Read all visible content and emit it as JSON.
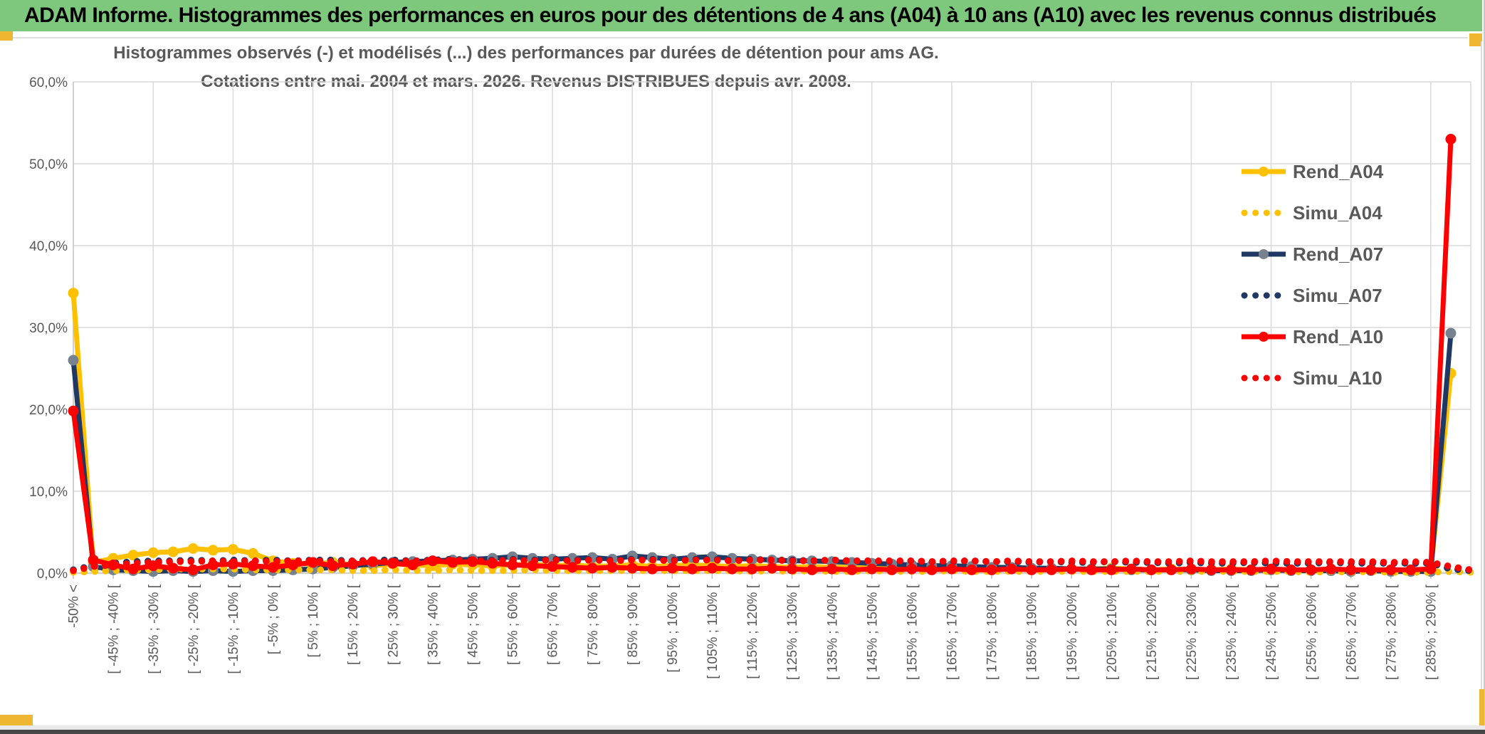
{
  "header": {
    "title": "ADAM Informe. Histogrammes des performances en euros pour des détentions de 4 ans (A04) à 10 ans (A10) avec les revenus connus distribués"
  },
  "colors": {
    "header_green": "#7ec87e",
    "accent_gold": "#efb731",
    "series_gold": "#FFC000",
    "series_navy": "#1F3864",
    "series_red": "#FF0000",
    "marker_grey": "#76828F",
    "grid_grey": "#D9D9D9",
    "axis_grey": "#BFBFBF",
    "text_grey": "#595959"
  },
  "chart_data": {
    "type": "line",
    "title_line1": "Histogrammes observés (-) et modélisés (...) des performances par durées de détention pour ams AG.",
    "title_line2": "Cotations entre mai. 2004 et mars. 2026. Revenus DISTRIBUES depuis avr. 2008.",
    "grid": true,
    "legend_position": "right-inside",
    "ylim": [
      0,
      60
    ],
    "ytick_labels_top_to_bottom": [
      "60,0%",
      "50,0%",
      "40,0%",
      "30,0%",
      "20,0%",
      "10,0%",
      "0,0%"
    ],
    "n_bins": 71,
    "xtick_every": 2,
    "xtick_labels": [
      "-50% <",
      "[ -45% ; -40% [",
      "[ -35% ; -30% [",
      "[ -25% ; -20% [",
      "[ -15% ; -10% [",
      "[ -5% ; 0% [",
      "[ 5% ; 10% [",
      "[ 15% ; 20% [",
      "[ 25% ; 30% [",
      "[ 35% ; 40% [",
      "[ 45% ; 50% [",
      "[ 55% ; 60% [",
      "[ 65% ; 70% [",
      "[ 75% ; 80% [",
      "[ 85% ; 90% [",
      "[ 95% ; 100% [",
      "[ 105% ; 110% [",
      "[ 115% ; 120% [",
      "[ 125% ; 130% [",
      "[ 135% ; 140% [",
      "[ 145% ; 150% [",
      "[ 155% ; 160% [",
      "[ 165% ; 170% [",
      "[ 175% ; 180% [",
      "[ 185% ; 190% [",
      "[ 195% ; 200% [",
      "[ 205% ; 210% [",
      "[ 215% ; 220% [",
      "[ 225% ; 230% [",
      "[ 235% ; 240% [",
      "[ 245% ; 250% [",
      "[ 255% ; 260% [",
      "[ 265% ; 270% [",
      "[ 275% ; 280% [",
      "[ 285% ; 290% ["
    ],
    "series": [
      {
        "name": "Rend_A04",
        "style": "solid",
        "color": "#FFC000",
        "marker": "#FFC000",
        "values": [
          34.2,
          1.3,
          1.8,
          2.2,
          2.5,
          2.6,
          3.0,
          2.8,
          2.9,
          2.4,
          1.5,
          1.2,
          1.1,
          1.3,
          1.0,
          0.9,
          1.1,
          1.0,
          0.9,
          1.1,
          1.0,
          0.9,
          1.0,
          1.1,
          0.9,
          1.0,
          0.8,
          0.9,
          1.0,
          0.8,
          0.9,
          1.0,
          0.9,
          0.8,
          0.9,
          0.8,
          0.7,
          0.8,
          0.7,
          0.8,
          0.7,
          0.6,
          0.7,
          0.6,
          0.7,
          0.6,
          0.5,
          0.6,
          0.5,
          0.6,
          0.5,
          0.5,
          0.6,
          0.5,
          0.4,
          0.5,
          0.4,
          0.4,
          0.5,
          0.4,
          0.4,
          0.3,
          0.4,
          0.3,
          0.4,
          0.3,
          0.3,
          0.4,
          0.3,
          24.4,
          null
        ]
      },
      {
        "name": "Simu_A04",
        "style": "dotted",
        "color": "#FFC000",
        "values": [
          0.1,
          0.2,
          0.3,
          0.4,
          0.4,
          0.5,
          0.5,
          0.5,
          0.5,
          0.4,
          0.4,
          0.4,
          0.4,
          0.4,
          0.3,
          0.3,
          0.4,
          0.3,
          0.3,
          0.4,
          0.3,
          0.3,
          0.3,
          0.4,
          0.3,
          0.3,
          0.3,
          0.3,
          0.3,
          0.3,
          0.3,
          0.3,
          0.3,
          0.3,
          0.2,
          0.3,
          0.2,
          0.3,
          0.2,
          0.2,
          0.3,
          0.2,
          0.2,
          0.2,
          0.3,
          0.2,
          0.2,
          0.2,
          0.2,
          0.2,
          0.2,
          0.2,
          0.2,
          0.2,
          0.2,
          0.2,
          0.2,
          0.2,
          0.2,
          0.2,
          0.2,
          0.2,
          0.1,
          0.2,
          0.1,
          0.2,
          0.1,
          0.1,
          0.1,
          0.2,
          0.1
        ]
      },
      {
        "name": "Rend_A07",
        "style": "solid",
        "color": "#1F3864",
        "marker": "#76828F",
        "values": [
          26.0,
          0.8,
          0.4,
          0.3,
          0.2,
          0.3,
          0.2,
          0.3,
          0.2,
          0.3,
          0.3,
          0.4,
          0.5,
          0.7,
          0.9,
          1.1,
          1.3,
          1.4,
          1.5,
          1.6,
          1.7,
          1.8,
          2.0,
          1.8,
          1.7,
          1.8,
          1.9,
          1.7,
          2.1,
          1.9,
          1.7,
          1.9,
          2.0,
          1.8,
          1.7,
          1.6,
          1.5,
          1.5,
          1.4,
          1.3,
          1.2,
          1.1,
          1.0,
          0.9,
          0.9,
          0.8,
          0.7,
          0.7,
          0.6,
          0.6,
          0.5,
          0.5,
          0.5,
          0.4,
          0.4,
          0.4,
          0.4,
          0.3,
          0.3,
          0.3,
          0.4,
          0.3,
          0.3,
          0.3,
          0.2,
          0.3,
          0.2,
          0.2,
          0.2,
          29.3,
          null
        ]
      },
      {
        "name": "Simu_A07",
        "style": "dotted",
        "color": "#1F3864",
        "values": [
          0.4,
          0.9,
          1.2,
          1.4,
          1.5,
          1.5,
          1.6,
          1.5,
          1.6,
          1.5,
          1.6,
          1.5,
          1.6,
          1.6,
          1.5,
          1.6,
          1.6,
          1.5,
          1.6,
          1.7,
          1.6,
          1.6,
          1.7,
          1.6,
          1.7,
          1.6,
          1.7,
          1.6,
          1.7,
          1.7,
          1.6,
          1.7,
          1.7,
          1.6,
          1.7,
          1.6,
          1.6,
          1.5,
          1.6,
          1.5,
          1.5,
          1.4,
          1.5,
          1.4,
          1.4,
          1.5,
          1.4,
          1.4,
          1.3,
          1.4,
          1.3,
          1.3,
          1.4,
          1.3,
          1.3,
          1.2,
          1.3,
          1.2,
          1.2,
          1.3,
          1.2,
          1.2,
          1.2,
          1.3,
          1.2,
          1.2,
          1.2,
          1.2,
          1.2,
          0.5,
          0.3
        ]
      },
      {
        "name": "Rend_A10",
        "style": "solid",
        "color": "#FF0000",
        "marker": "#FF0000",
        "values": [
          19.8,
          1.6,
          1.0,
          0.5,
          0.9,
          0.6,
          0.4,
          1.0,
          1.1,
          0.9,
          0.7,
          1.0,
          1.3,
          0.9,
          1.1,
          1.4,
          1.2,
          1.0,
          1.5,
          1.3,
          1.4,
          1.2,
          1.0,
          0.9,
          0.8,
          0.7,
          0.6,
          0.7,
          0.6,
          0.5,
          0.6,
          0.5,
          0.6,
          0.5,
          0.5,
          0.6,
          0.5,
          0.4,
          0.5,
          0.4,
          0.5,
          0.4,
          0.5,
          0.4,
          0.5,
          0.4,
          0.4,
          0.5,
          0.4,
          0.4,
          0.5,
          0.4,
          0.4,
          0.5,
          0.4,
          0.4,
          0.5,
          0.4,
          0.4,
          0.4,
          0.5,
          0.4,
          0.4,
          0.5,
          0.4,
          0.4,
          0.4,
          0.4,
          0.5,
          53.0,
          null
        ]
      },
      {
        "name": "Simu_A10",
        "style": "dotted",
        "color": "#FF0000",
        "values": [
          0.3,
          0.8,
          1.0,
          1.2,
          1.3,
          1.4,
          1.4,
          1.5,
          1.4,
          1.5,
          1.4,
          1.5,
          1.5,
          1.4,
          1.5,
          1.5,
          1.4,
          1.5,
          1.5,
          1.6,
          1.5,
          1.5,
          1.6,
          1.5,
          1.6,
          1.5,
          1.6,
          1.5,
          1.6,
          1.6,
          1.5,
          1.6,
          1.6,
          1.5,
          1.6,
          1.6,
          1.5,
          1.5,
          1.6,
          1.5,
          1.5,
          1.5,
          1.5,
          1.4,
          1.5,
          1.5,
          1.4,
          1.5,
          1.4,
          1.4,
          1.5,
          1.4,
          1.4,
          1.5,
          1.4,
          1.4,
          1.5,
          1.4,
          1.4,
          1.4,
          1.5,
          1.4,
          1.4,
          1.4,
          1.4,
          1.4,
          1.3,
          1.4,
          1.3,
          0.8,
          0.4
        ]
      }
    ]
  }
}
